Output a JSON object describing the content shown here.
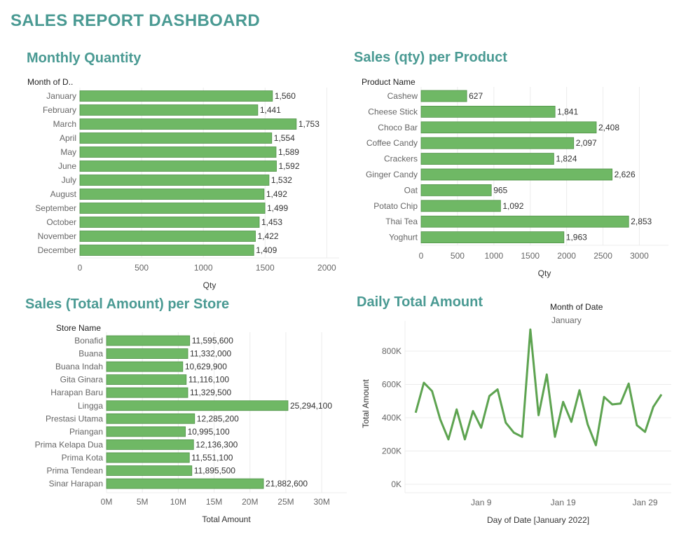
{
  "dashboard": {
    "title": "SALES REPORT DASHBOARD"
  },
  "chart_data": [
    {
      "id": "monthly",
      "type": "bar",
      "title": "Monthly Quantity",
      "row_header": "Month of D..",
      "categories": [
        "January",
        "February",
        "March",
        "April",
        "May",
        "June",
        "July",
        "August",
        "September",
        "October",
        "November",
        "December"
      ],
      "values": [
        1560,
        1441,
        1753,
        1554,
        1589,
        1592,
        1532,
        1492,
        1499,
        1453,
        1422,
        1409
      ],
      "value_labels": [
        "1,560",
        "1,441",
        "1,753",
        "1,554",
        "1,589",
        "1,592",
        "1,532",
        "1,492",
        "1,499",
        "1,453",
        "1,422",
        "1,409"
      ],
      "xlabel": "Qty",
      "xlim": [
        0,
        2100
      ],
      "xticks": [
        0,
        500,
        1000,
        1500,
        2000
      ],
      "xtick_labels": [
        "0",
        "500",
        "1000",
        "1500",
        "2000"
      ]
    },
    {
      "id": "product",
      "type": "bar",
      "title": "Sales (qty) per Product",
      "row_header": "Product Name",
      "categories": [
        "Cashew",
        "Cheese Stick",
        "Choco Bar",
        "Coffee Candy",
        "Crackers",
        "Ginger Candy",
        "Oat",
        "Potato Chip",
        "Thai Tea",
        "Yoghurt"
      ],
      "values": [
        627,
        1841,
        2408,
        2097,
        1824,
        2626,
        965,
        1092,
        2853,
        1963
      ],
      "value_labels": [
        "627",
        "1,841",
        "2,408",
        "2,097",
        "1,824",
        "2,626",
        "965",
        "1,092",
        "2,853",
        "1,963"
      ],
      "xlabel": "Qty",
      "xlim": [
        0,
        3400
      ],
      "xticks": [
        0,
        500,
        1000,
        1500,
        2000,
        2500,
        3000
      ],
      "xtick_labels": [
        "0",
        "500",
        "1000",
        "1500",
        "2000",
        "2500",
        "3000"
      ]
    },
    {
      "id": "store",
      "type": "bar",
      "title": "Sales (Total Amount) per Store",
      "row_header": "Store Name",
      "categories": [
        "Bonafid",
        "Buana",
        "Buana Indah",
        "Gita Ginara",
        "Harapan Baru",
        "Lingga",
        "Prestasi Utama",
        "Priangan",
        "Prima Kelapa Dua",
        "Prima Kota",
        "Prima Tendean",
        "Sinar Harapan"
      ],
      "values": [
        11595600,
        11332000,
        10629900,
        11116100,
        11329500,
        25294100,
        12285200,
        10995100,
        12136300,
        11551100,
        11895500,
        21882600
      ],
      "value_labels": [
        "11,595,600",
        "11,332,000",
        "10,629,900",
        "11,116,100",
        "11,329,500",
        "25,294,100",
        "12,285,200",
        "10,995,100",
        "12,136,300",
        "11,551,100",
        "11,895,500",
        "21,882,600"
      ],
      "xlabel": "Total Amount",
      "xlim": [
        0,
        33500000
      ],
      "xticks": [
        0,
        5000000,
        10000000,
        15000000,
        20000000,
        25000000,
        30000000
      ],
      "xtick_labels": [
        "0M",
        "5M",
        "10M",
        "15M",
        "20M",
        "25M",
        "30M"
      ]
    },
    {
      "id": "daily",
      "type": "line",
      "title": "Daily Total Amount",
      "legend_title": "Month of Date",
      "legend_item": "January",
      "x": [
        "2022-01-01",
        "2022-01-02",
        "2022-01-03",
        "2022-01-04",
        "2022-01-05",
        "2022-01-06",
        "2022-01-07",
        "2022-01-08",
        "2022-01-09",
        "2022-01-10",
        "2022-01-11",
        "2022-01-12",
        "2022-01-13",
        "2022-01-14",
        "2022-01-15",
        "2022-01-16",
        "2022-01-17",
        "2022-01-18",
        "2022-01-19",
        "2022-01-20",
        "2022-01-21",
        "2022-01-22",
        "2022-01-23",
        "2022-01-24",
        "2022-01-25",
        "2022-01-26",
        "2022-01-27",
        "2022-01-28",
        "2022-01-29",
        "2022-01-30",
        "2022-01-31"
      ],
      "values": [
        430000,
        610000,
        560000,
        390000,
        270000,
        450000,
        270000,
        440000,
        340000,
        530000,
        570000,
        370000,
        310000,
        285000,
        930000,
        415000,
        660000,
        285000,
        495000,
        375000,
        565000,
        360000,
        235000,
        525000,
        480000,
        485000,
        605000,
        355000,
        315000,
        465000,
        540000
      ],
      "xlabel": "Day of Date [January 2022]",
      "ylabel": "Total Amount",
      "ylim": [
        0,
        960000
      ],
      "yticks": [
        0,
        200000,
        400000,
        600000,
        800000
      ],
      "ytick_labels": [
        "0K",
        "200K",
        "400K",
        "600K",
        "800K"
      ],
      "xticks": [
        "2022-01-09",
        "2022-01-19",
        "2022-01-29"
      ],
      "xtick_labels": [
        "Jan 9",
        "Jan 19",
        "Jan 29"
      ]
    }
  ]
}
